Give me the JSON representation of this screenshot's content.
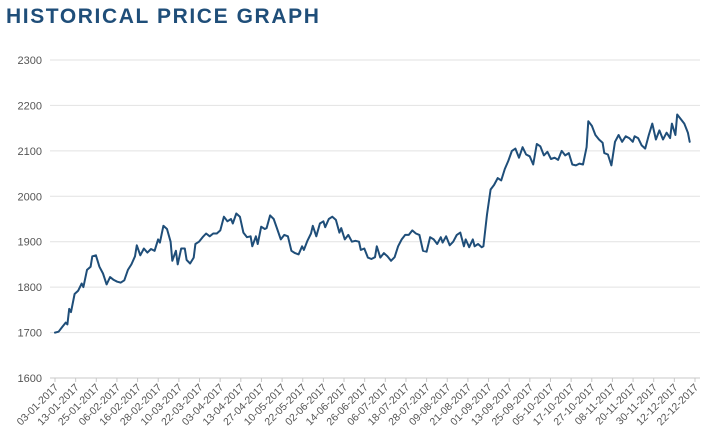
{
  "chart_data": {
    "type": "line",
    "title": "HISTORICAL PRICE GRAPH",
    "xlabel": "",
    "ylabel": "",
    "ylim": [
      1600,
      2300
    ],
    "yticks": [
      1600,
      1700,
      1800,
      1900,
      2000,
      2100,
      2200,
      2300
    ],
    "xlim": [
      "2017-01-03",
      "2017-12-29"
    ],
    "grid": true,
    "legend": "none",
    "line_color": "#1f4e79",
    "xtick_labels": [
      "03-01-2017",
      "13-01-2017",
      "25-01-2017",
      "06-02-2017",
      "16-02-2017",
      "28-02-2017",
      "10-03-2017",
      "22-03-2017",
      "03-04-2017",
      "13-04-2017",
      "27-04-2017",
      "10-05-2017",
      "22-05-2017",
      "02-06-2017",
      "14-06-2017",
      "26-06-2017",
      "06-07-2017",
      "18-07-2017",
      "28-07-2017",
      "09-08-2017",
      "21-08-2017",
      "01-09-2017",
      "13-09-2017",
      "25-09-2017",
      "05-10-2017",
      "17-10-2017",
      "27-10-2017",
      "08-11-2017",
      "20-11-2017",
      "30-11-2017",
      "12-12-2017",
      "22-12-2017"
    ],
    "series": [
      {
        "points": [
          [
            "2017-01-03",
            1700
          ],
          [
            "2017-01-05",
            1702
          ],
          [
            "2017-01-07",
            1712
          ],
          [
            "2017-01-09",
            1722
          ],
          [
            "2017-01-10",
            1718
          ],
          [
            "2017-01-11",
            1752
          ],
          [
            "2017-01-12",
            1745
          ],
          [
            "2017-01-14",
            1785
          ],
          [
            "2017-01-16",
            1792
          ],
          [
            "2017-01-18",
            1808
          ],
          [
            "2017-01-19",
            1800
          ],
          [
            "2017-01-21",
            1838
          ],
          [
            "2017-01-23",
            1845
          ],
          [
            "2017-01-24",
            1868
          ],
          [
            "2017-01-26",
            1870
          ],
          [
            "2017-01-28",
            1845
          ],
          [
            "2017-01-30",
            1830
          ],
          [
            "2017-02-01",
            1806
          ],
          [
            "2017-02-03",
            1822
          ],
          [
            "2017-02-05",
            1816
          ],
          [
            "2017-02-07",
            1812
          ],
          [
            "2017-02-09",
            1810
          ],
          [
            "2017-02-11",
            1815
          ],
          [
            "2017-02-13",
            1838
          ],
          [
            "2017-02-15",
            1850
          ],
          [
            "2017-02-17",
            1868
          ],
          [
            "2017-02-18",
            1892
          ],
          [
            "2017-02-20",
            1870
          ],
          [
            "2017-02-22",
            1885
          ],
          [
            "2017-02-24",
            1876
          ],
          [
            "2017-02-26",
            1884
          ],
          [
            "2017-02-28",
            1880
          ],
          [
            "2017-03-02",
            1905
          ],
          [
            "2017-03-03",
            1898
          ],
          [
            "2017-03-05",
            1935
          ],
          [
            "2017-03-07",
            1928
          ],
          [
            "2017-03-09",
            1900
          ],
          [
            "2017-03-10",
            1858
          ],
          [
            "2017-03-12",
            1880
          ],
          [
            "2017-03-13",
            1850
          ],
          [
            "2017-03-15",
            1885
          ],
          [
            "2017-03-17",
            1885
          ],
          [
            "2017-03-18",
            1860
          ],
          [
            "2017-03-20",
            1852
          ],
          [
            "2017-03-22",
            1865
          ],
          [
            "2017-03-23",
            1895
          ],
          [
            "2017-03-25",
            1900
          ],
          [
            "2017-03-27",
            1910
          ],
          [
            "2017-03-29",
            1918
          ],
          [
            "2017-03-31",
            1912
          ],
          [
            "2017-04-02",
            1918
          ],
          [
            "2017-04-04",
            1918
          ],
          [
            "2017-04-06",
            1925
          ],
          [
            "2017-04-08",
            1955
          ],
          [
            "2017-04-10",
            1945
          ],
          [
            "2017-04-12",
            1950
          ],
          [
            "2017-04-13",
            1940
          ],
          [
            "2017-04-15",
            1962
          ],
          [
            "2017-04-17",
            1955
          ],
          [
            "2017-04-19",
            1920
          ],
          [
            "2017-04-21",
            1910
          ],
          [
            "2017-04-23",
            1912
          ],
          [
            "2017-04-24",
            1890
          ],
          [
            "2017-04-26",
            1912
          ],
          [
            "2017-04-27",
            1895
          ],
          [
            "2017-04-29",
            1933
          ],
          [
            "2017-05-01",
            1928
          ],
          [
            "2017-05-02",
            1930
          ],
          [
            "2017-05-04",
            1958
          ],
          [
            "2017-05-06",
            1950
          ],
          [
            "2017-05-08",
            1928
          ],
          [
            "2017-05-10",
            1905
          ],
          [
            "2017-05-12",
            1915
          ],
          [
            "2017-05-14",
            1912
          ],
          [
            "2017-05-16",
            1880
          ],
          [
            "2017-05-18",
            1875
          ],
          [
            "2017-05-20",
            1872
          ],
          [
            "2017-05-22",
            1890
          ],
          [
            "2017-05-23",
            1882
          ],
          [
            "2017-05-25",
            1902
          ],
          [
            "2017-05-27",
            1918
          ],
          [
            "2017-05-28",
            1935
          ],
          [
            "2017-05-30",
            1912
          ],
          [
            "2017-06-01",
            1940
          ],
          [
            "2017-06-03",
            1945
          ],
          [
            "2017-06-04",
            1932
          ],
          [
            "2017-06-06",
            1950
          ],
          [
            "2017-06-08",
            1955
          ],
          [
            "2017-06-10",
            1948
          ],
          [
            "2017-06-12",
            1920
          ],
          [
            "2017-06-13",
            1930
          ],
          [
            "2017-06-15",
            1905
          ],
          [
            "2017-06-17",
            1915
          ],
          [
            "2017-06-19",
            1900
          ],
          [
            "2017-06-21",
            1902
          ],
          [
            "2017-06-23",
            1900
          ],
          [
            "2017-06-24",
            1882
          ],
          [
            "2017-06-26",
            1885
          ],
          [
            "2017-06-28",
            1865
          ],
          [
            "2017-06-30",
            1862
          ],
          [
            "2017-07-02",
            1866
          ],
          [
            "2017-07-03",
            1890
          ],
          [
            "2017-07-05",
            1865
          ],
          [
            "2017-07-07",
            1875
          ],
          [
            "2017-07-09",
            1868
          ],
          [
            "2017-07-11",
            1858
          ],
          [
            "2017-07-13",
            1866
          ],
          [
            "2017-07-15",
            1890
          ],
          [
            "2017-07-17",
            1905
          ],
          [
            "2017-07-19",
            1915
          ],
          [
            "2017-07-21",
            1915
          ],
          [
            "2017-07-23",
            1925
          ],
          [
            "2017-07-25",
            1918
          ],
          [
            "2017-07-27",
            1915
          ],
          [
            "2017-07-29",
            1880
          ],
          [
            "2017-07-31",
            1878
          ],
          [
            "2017-08-02",
            1910
          ],
          [
            "2017-08-04",
            1905
          ],
          [
            "2017-08-06",
            1895
          ],
          [
            "2017-08-08",
            1910
          ],
          [
            "2017-08-09",
            1898
          ],
          [
            "2017-08-11",
            1912
          ],
          [
            "2017-08-13",
            1892
          ],
          [
            "2017-08-15",
            1900
          ],
          [
            "2017-08-17",
            1915
          ],
          [
            "2017-08-19",
            1920
          ],
          [
            "2017-08-21",
            1890
          ],
          [
            "2017-08-22",
            1905
          ],
          [
            "2017-08-24",
            1888
          ],
          [
            "2017-08-26",
            1905
          ],
          [
            "2017-08-27",
            1890
          ],
          [
            "2017-08-29",
            1895
          ],
          [
            "2017-08-31",
            1888
          ],
          [
            "2017-09-01",
            1890
          ],
          [
            "2017-09-03",
            1960
          ],
          [
            "2017-09-05",
            2015
          ],
          [
            "2017-09-07",
            2025
          ],
          [
            "2017-09-09",
            2040
          ],
          [
            "2017-09-11",
            2035
          ],
          [
            "2017-09-13",
            2060
          ],
          [
            "2017-09-15",
            2078
          ],
          [
            "2017-09-17",
            2100
          ],
          [
            "2017-09-19",
            2105
          ],
          [
            "2017-09-21",
            2085
          ],
          [
            "2017-09-23",
            2108
          ],
          [
            "2017-09-25",
            2092
          ],
          [
            "2017-09-27",
            2088
          ],
          [
            "2017-09-29",
            2070
          ],
          [
            "2017-10-01",
            2115
          ],
          [
            "2017-10-03",
            2110
          ],
          [
            "2017-10-05",
            2090
          ],
          [
            "2017-10-07",
            2098
          ],
          [
            "2017-10-09",
            2082
          ],
          [
            "2017-10-11",
            2085
          ],
          [
            "2017-10-13",
            2080
          ],
          [
            "2017-10-15",
            2100
          ],
          [
            "2017-10-17",
            2090
          ],
          [
            "2017-10-19",
            2095
          ],
          [
            "2017-10-21",
            2070
          ],
          [
            "2017-10-23",
            2068
          ],
          [
            "2017-10-25",
            2072
          ],
          [
            "2017-10-27",
            2070
          ],
          [
            "2017-10-29",
            2108
          ],
          [
            "2017-10-30",
            2165
          ],
          [
            "2017-11-01",
            2155
          ],
          [
            "2017-11-03",
            2135
          ],
          [
            "2017-11-05",
            2125
          ],
          [
            "2017-11-07",
            2118
          ],
          [
            "2017-11-08",
            2095
          ],
          [
            "2017-11-10",
            2092
          ],
          [
            "2017-11-12",
            2068
          ],
          [
            "2017-11-14",
            2120
          ],
          [
            "2017-11-16",
            2135
          ],
          [
            "2017-11-18",
            2120
          ],
          [
            "2017-11-20",
            2132
          ],
          [
            "2017-11-22",
            2128
          ],
          [
            "2017-11-24",
            2120
          ],
          [
            "2017-11-25",
            2132
          ],
          [
            "2017-11-27",
            2128
          ],
          [
            "2017-11-29",
            2112
          ],
          [
            "2017-12-01",
            2105
          ],
          [
            "2017-12-03",
            2135
          ],
          [
            "2017-12-05",
            2160
          ],
          [
            "2017-12-07",
            2125
          ],
          [
            "2017-12-09",
            2145
          ],
          [
            "2017-12-11",
            2125
          ],
          [
            "2017-12-13",
            2140
          ],
          [
            "2017-12-15",
            2128
          ],
          [
            "2017-12-16",
            2160
          ],
          [
            "2017-12-18",
            2135
          ],
          [
            "2017-12-19",
            2180
          ],
          [
            "2017-12-21",
            2170
          ],
          [
            "2017-12-23",
            2160
          ],
          [
            "2017-12-25",
            2140
          ],
          [
            "2017-12-26",
            2120
          ]
        ]
      }
    ]
  }
}
